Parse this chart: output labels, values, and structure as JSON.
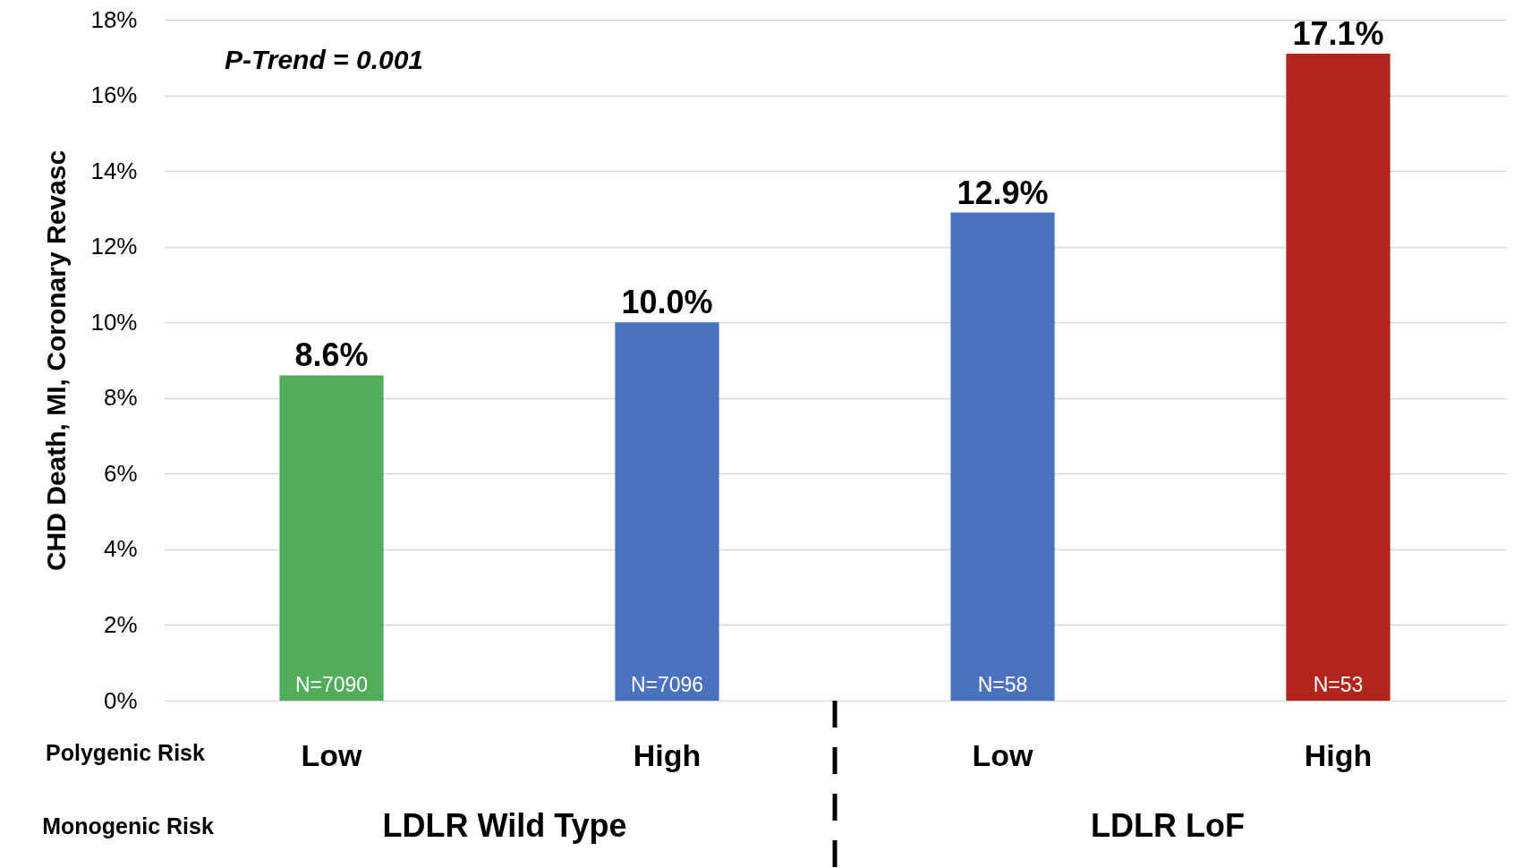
{
  "chart_data": {
    "type": "bar",
    "ylabel": "CHD Death, MI, Coronary Revasc",
    "categories": [
      "Low",
      "High",
      "Low",
      "High"
    ],
    "values": [
      8.6,
      10.0,
      12.9,
      17.1
    ],
    "colors": [
      "#52ad5b",
      "#4a72be",
      "#4a72be",
      "#b0261c"
    ],
    "value_labels": [
      "8.6%",
      "10.0%",
      "12.9%",
      "17.1%"
    ],
    "ylim": [
      0,
      18
    ],
    "yticks": [
      {
        "value": 0,
        "label": "0%"
      },
      {
        "value": 2,
        "label": "2%"
      },
      {
        "value": 4,
        "label": "4%"
      },
      {
        "value": 6,
        "label": "6%"
      },
      {
        "value": 8,
        "label": "8%"
      },
      {
        "value": 10,
        "label": "10%"
      },
      {
        "value": 12,
        "label": "12%"
      },
      {
        "value": 14,
        "label": "14%"
      },
      {
        "value": 16,
        "label": "16%"
      },
      {
        "value": 18,
        "label": "18%"
      }
    ],
    "grid": "y",
    "annotations": [
      "P-Trend = 0.001",
      "N=7090",
      "N=7096",
      "N=58",
      "N=53",
      "Polygenic Risk",
      "Monogenic Risk",
      "LDLR Wild Type",
      "LDLR LoF"
    ]
  }
}
